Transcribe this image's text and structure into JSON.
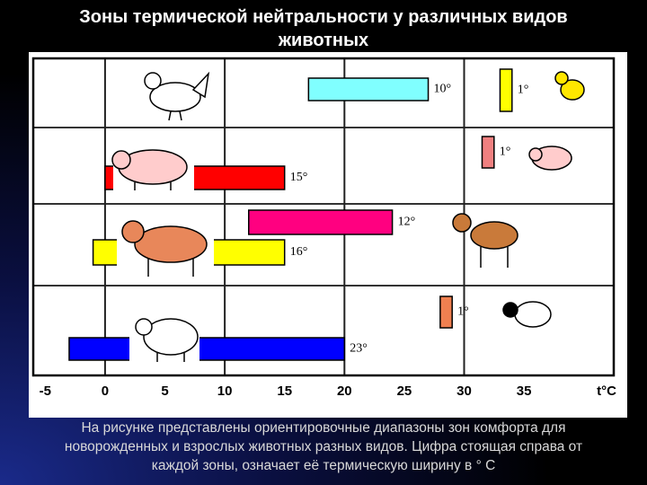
{
  "chart_data": {
    "type": "range-bar",
    "title": "Зоны термической нейтральности у различных видов животных",
    "x_label": "t°C",
    "xlim": [
      -6,
      42.5
    ],
    "xticks": [
      -5,
      0,
      5,
      10,
      15,
      20,
      25,
      30,
      35
    ],
    "grid": true,
    "bars": [
      {
        "start": 17,
        "end": 27,
        "color": "#80ffff",
        "label": "10°"
      },
      {
        "start": 33,
        "end": 34,
        "color": "#ffff00",
        "label": "1°"
      },
      {
        "start": 0,
        "end": 15,
        "color": "#ff0000",
        "label": "15°"
      },
      {
        "start": 31.5,
        "end": 32.5,
        "color": "#f08080",
        "label": "1°"
      },
      {
        "start": 12,
        "end": 24,
        "color": "#ff0080",
        "label": "12°"
      },
      {
        "start": -1,
        "end": 15,
        "color": "#ffff00",
        "label": "16°"
      },
      {
        "start": -3,
        "end": 20,
        "color": "#0000ff",
        "label": "23°"
      },
      {
        "start": 28,
        "end": 29,
        "color": "#f08050",
        "label": "1°"
      }
    ]
  },
  "caption": "На рисунке представлены ориентировочные диапазоны зон комфорта для новорожденных и взрослых животных разных видов. Цифра стоящая справа от каждой зоны, означает её термическую ширину в ° С"
}
